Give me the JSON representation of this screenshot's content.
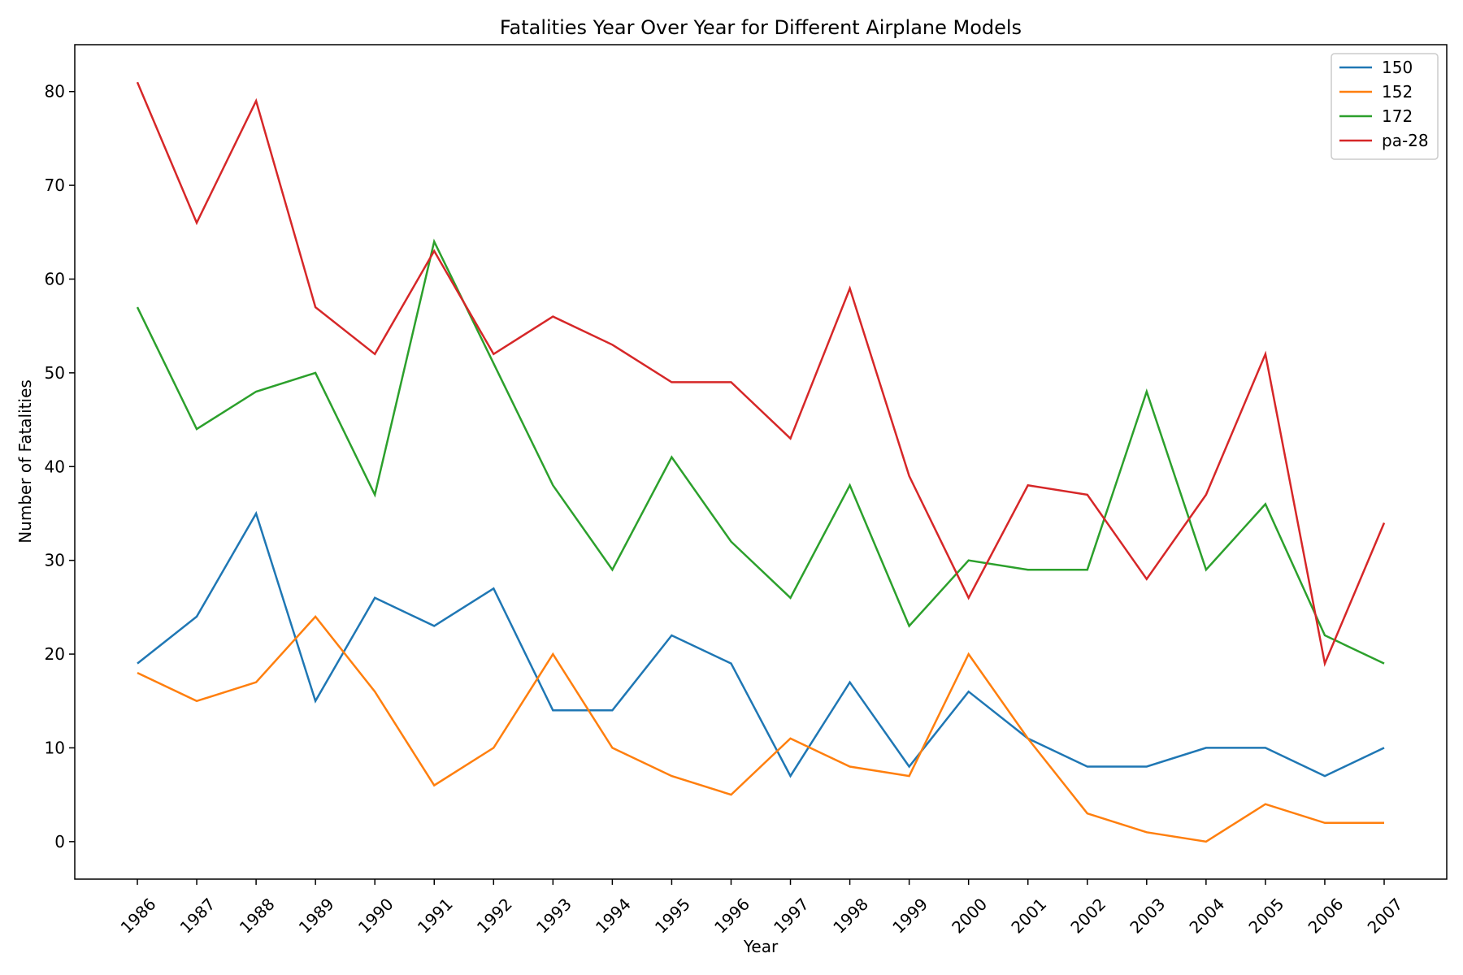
{
  "chart_data": {
    "type": "line",
    "title": "Fatalities Year Over Year for Different Airplane Models",
    "xlabel": "Year",
    "ylabel": "Number of Fatalities",
    "categories": [
      "1986",
      "1987",
      "1988",
      "1989",
      "1990",
      "1991",
      "1992",
      "1993",
      "1994",
      "1995",
      "1996",
      "1997",
      "1998",
      "1999",
      "2000",
      "2001",
      "2002",
      "2003",
      "2004",
      "2005",
      "2006",
      "2007"
    ],
    "ylim": [
      -4,
      85
    ],
    "yticks": [
      0,
      10,
      20,
      30,
      40,
      50,
      60,
      70,
      80
    ],
    "grid": false,
    "legend_position": "top-right",
    "series": [
      {
        "name": "150",
        "color": "#1f77b4",
        "values": [
          19,
          24,
          35,
          15,
          26,
          23,
          27,
          14,
          14,
          22,
          19,
          7,
          17,
          8,
          16,
          11,
          8,
          8,
          10,
          10,
          7,
          10
        ]
      },
      {
        "name": "152",
        "color": "#ff7f0e",
        "values": [
          18,
          15,
          17,
          24,
          16,
          6,
          10,
          20,
          10,
          7,
          5,
          11,
          8,
          7,
          20,
          11,
          3,
          1,
          0,
          4,
          2,
          2
        ]
      },
      {
        "name": "172",
        "color": "#2ca02c",
        "values": [
          57,
          44,
          48,
          50,
          37,
          64,
          51,
          38,
          29,
          41,
          32,
          26,
          38,
          23,
          30,
          29,
          29,
          48,
          29,
          36,
          22,
          19
        ]
      },
      {
        "name": "pa-28",
        "color": "#d62728",
        "values": [
          81,
          66,
          79,
          57,
          52,
          63,
          52,
          56,
          53,
          49,
          49,
          43,
          59,
          39,
          26,
          38,
          37,
          28,
          37,
          52,
          19,
          34
        ]
      }
    ]
  }
}
